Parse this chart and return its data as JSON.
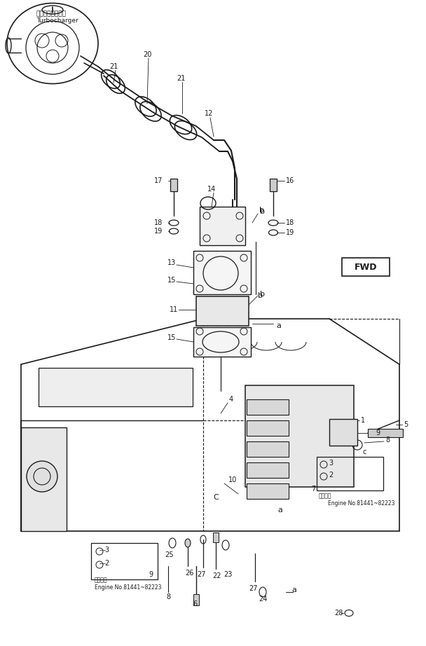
{
  "background_color": "#ffffff",
  "line_color": "#1a1a1a",
  "fig_width": 6.08,
  "fig_height": 9.22,
  "dpi": 100,
  "labels": {
    "turbocharger_jp": "ターボチャージャ",
    "turbocharger_en": "Turbocharger",
    "fwd": "FWD",
    "engine_no_jp": "適用号機",
    "engine_no_en": "Engine No.81441~82223"
  }
}
